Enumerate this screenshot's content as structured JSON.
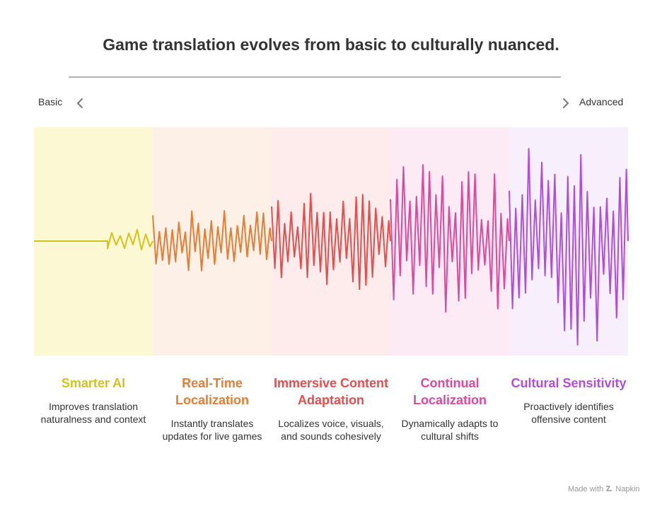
{
  "title": "Game translation evolves from basic to culturally nuanced.",
  "scale": {
    "left_label": "Basic",
    "right_label": "Advanced",
    "left_icon": "chevron-left-icon",
    "right_icon": "chevron-right-icon"
  },
  "stages": [
    {
      "title": "Smarter AI",
      "description": "Improves translation naturalness and context",
      "color": "#d4c21c",
      "band_color": "#fcf8d3",
      "amplitude": 0.12
    },
    {
      "title": "Real-Time Localization",
      "description": "Instantly translates updates for live games",
      "color": "#e07f35",
      "band_color": "#fdf0e6",
      "amplitude": 0.28
    },
    {
      "title": "Immersive Content Adaptation",
      "description": "Localizes voice, visuals, and sounds cohesively",
      "color": "#e0504f",
      "band_color": "#fdeceb",
      "amplitude": 0.45
    },
    {
      "title": "Continual Localization",
      "description": "Dynamically adapts to cultural shifts",
      "color": "#d94b9f",
      "band_color": "#fcebf5",
      "amplitude": 0.7
    },
    {
      "title": "Cultural Sensitivity",
      "description": "Proactively identifies offensive content",
      "color": "#b04fd6",
      "band_color": "#f8effd",
      "amplitude": 1.0
    }
  ],
  "footer": {
    "prefix": "Made with",
    "brand": "Napkin",
    "icon": "napkin-logo-icon"
  }
}
